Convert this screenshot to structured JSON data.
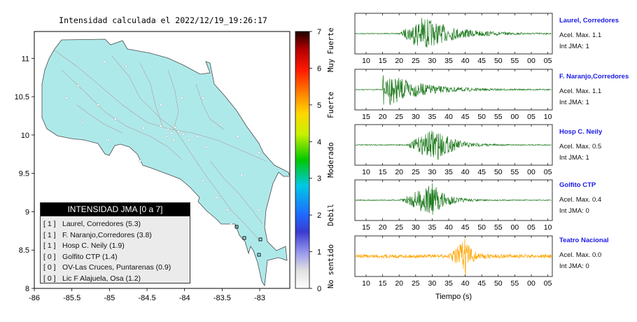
{
  "map": {
    "title": "Intensidad calculada el 2022/12/19_19:26:17",
    "x_ticks": [
      "-86",
      "-85.5",
      "-85",
      "-84.5",
      "-84",
      "-83.5",
      "-83"
    ],
    "y_ticks": [
      "11",
      "10.5",
      "10",
      "9.5",
      "9",
      "8.5",
      "8"
    ],
    "xlim": [
      -86,
      -82.6
    ],
    "ylim": [
      8,
      11.35
    ],
    "land_color": "#aee9ea"
  },
  "colorbar": {
    "ticks": [
      "0",
      "1",
      "2",
      "3",
      "4",
      "5",
      "6",
      "7"
    ],
    "categories": [
      "No sentido",
      "Debil",
      "Moderado",
      "Fuerte",
      "Muy Fuerte"
    ]
  },
  "legend": {
    "title": "INTENSIDAD JMA [0 a 7]",
    "items": [
      {
        "level": "[ 1 ]",
        "text": "Laurel, Corredores (5.3)"
      },
      {
        "level": "[ 1 ]",
        "text": "F. Naranjo,Corredores (3.8)"
      },
      {
        "level": "[ 1 ]",
        "text": "Hosp C. Neily (1.9)"
      },
      {
        "level": "[ 0 ]",
        "text": "Golfito CTP (1.4)"
      },
      {
        "level": "[ 0 ]",
        "text": "OV-Las Cruces, Puntarenas (0.9)"
      },
      {
        "level": "[ 0 ]",
        "text": "Lic F Alajuela, Osa (1.2)"
      }
    ]
  },
  "waveforms": {
    "xlabel": "Tiempo (s)",
    "stations": [
      {
        "name": "Laurel, Corredores",
        "acel": "Acel. Max. 1.1",
        "int": "Int JMA: 1",
        "color": "#1e7a1e",
        "ticks": [
          "10",
          "15",
          "20",
          "25",
          "30",
          "35",
          "40",
          "45",
          "50",
          "55",
          "00",
          "05"
        ],
        "first_tick": 10,
        "onset": 20,
        "peak": 27,
        "amp": 1.0,
        "decay": 9
      },
      {
        "name": "F. Naranjo,Corredores",
        "acel": "Acel. Max. 1.1",
        "int": "Int JMA: 1",
        "color": "#1e7a1e",
        "ticks": [
          "15",
          "20",
          "25",
          "30",
          "35",
          "40",
          "45",
          "50",
          "55",
          "00",
          "05",
          "10"
        ],
        "first_tick": 15,
        "onset": 20,
        "peak": 22,
        "amp": 0.9,
        "decay": 10
      },
      {
        "name": "Hosp C. Neily",
        "acel": "Acel. Max. 0.5",
        "int": "Int JMA: 1",
        "color": "#1e7a1e",
        "ticks": [
          "10",
          "15",
          "20",
          "25",
          "30",
          "35",
          "40",
          "45",
          "50",
          "55",
          "00",
          "05"
        ],
        "first_tick": 10,
        "onset": 22,
        "peak": 31,
        "amp": 1.0,
        "decay": 5
      },
      {
        "name": "Golfito CTP",
        "acel": "Acel. Max. 0.4",
        "int": "Int JMA: 0",
        "color": "#1e7a1e",
        "ticks": [
          "15",
          "20",
          "25",
          "30",
          "35",
          "40",
          "45",
          "50",
          "55",
          "00",
          "05",
          "10"
        ],
        "first_tick": 15,
        "onset": 25,
        "peak": 35,
        "amp": 1.0,
        "decay": 4
      },
      {
        "name": "Teatro Nacional",
        "acel": "Acel. Max. 0.0",
        "int": "Int JMA: 0",
        "color": "#ffa500",
        "ticks": [
          "10",
          "15",
          "20",
          "25",
          "30",
          "35",
          "40",
          "45",
          "50",
          "55",
          "00",
          "05"
        ],
        "first_tick": 10,
        "onset": 35,
        "peak": 40,
        "amp": 1.0,
        "decay": 2
      }
    ]
  }
}
